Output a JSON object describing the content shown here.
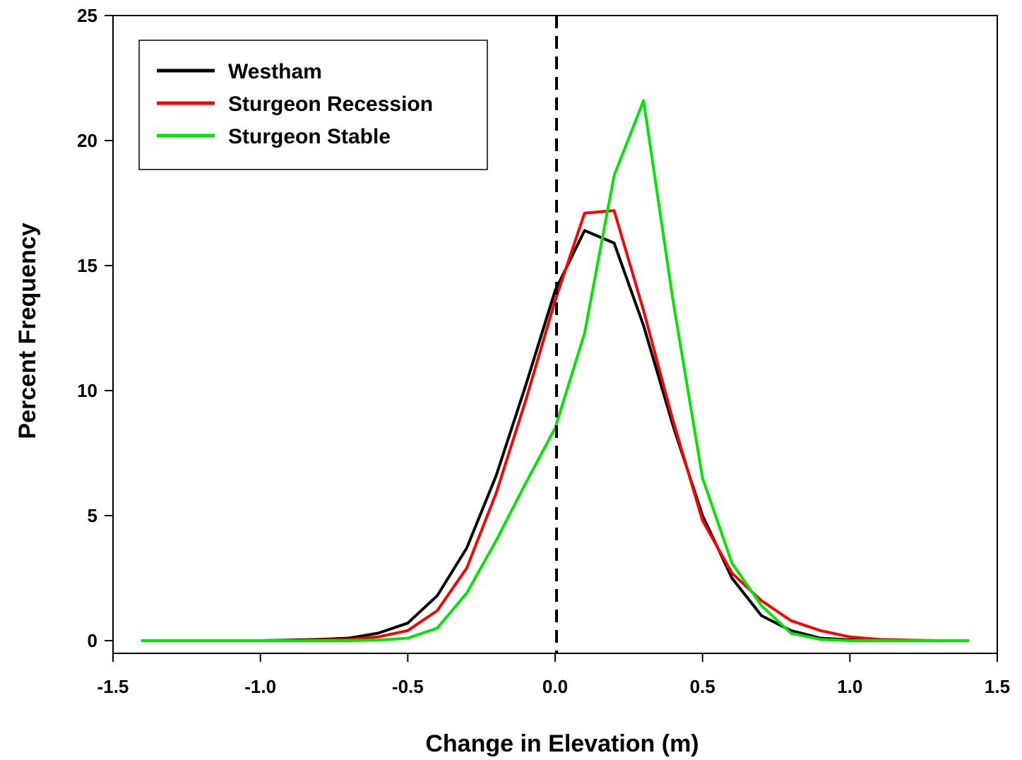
{
  "chart_data": {
    "type": "line",
    "title": "",
    "xlabel": "Change in Elevation (m)",
    "ylabel": "Percent Frequency",
    "xlim": [
      -1.5,
      1.5
    ],
    "ylim": [
      0,
      25
    ],
    "x_ticks": [
      -1.5,
      -1.0,
      -0.5,
      0.0,
      0.5,
      1.0,
      1.5
    ],
    "x_tick_labels": [
      "-1.5",
      "-1.0",
      "-0.5",
      "0.0",
      "0.5",
      "1.0",
      "1.5"
    ],
    "y_ticks": [
      0,
      5,
      10,
      15,
      20,
      25
    ],
    "y_tick_labels": [
      "0",
      "5",
      "10",
      "15",
      "20",
      "25"
    ],
    "grid": false,
    "legend_position": "top-left",
    "reference_line": {
      "x": 0.0,
      "style": "dashed",
      "color": "#000000"
    },
    "series": [
      {
        "name": "Westham",
        "color": "#000000",
        "x": [
          -1.4,
          -1.3,
          -1.2,
          -1.1,
          -1.0,
          -0.9,
          -0.8,
          -0.7,
          -0.6,
          -0.5,
          -0.4,
          -0.3,
          -0.2,
          -0.1,
          0.0,
          0.1,
          0.2,
          0.3,
          0.4,
          0.5,
          0.6,
          0.7,
          0.8,
          0.9,
          1.0,
          1.1,
          1.2,
          1.3,
          1.4
        ],
        "y": [
          0.0,
          0.0,
          0.0,
          0.0,
          0.0,
          0.02,
          0.05,
          0.1,
          0.3,
          0.7,
          1.8,
          3.7,
          6.6,
          10.2,
          14.0,
          16.4,
          15.9,
          12.6,
          8.6,
          5.0,
          2.5,
          1.0,
          0.4,
          0.1,
          0.03,
          0.0,
          0.0,
          0.0,
          0.0
        ]
      },
      {
        "name": "Sturgeon Recession",
        "color": "#ff0000",
        "x": [
          -1.4,
          -1.3,
          -1.2,
          -1.1,
          -1.0,
          -0.9,
          -0.8,
          -0.7,
          -0.6,
          -0.5,
          -0.4,
          -0.3,
          -0.2,
          -0.1,
          0.0,
          0.1,
          0.2,
          0.3,
          0.4,
          0.5,
          0.6,
          0.7,
          0.8,
          0.9,
          1.0,
          1.1,
          1.2,
          1.3,
          1.4
        ],
        "y": [
          0.0,
          0.0,
          0.0,
          0.0,
          0.0,
          0.0,
          0.02,
          0.05,
          0.15,
          0.4,
          1.2,
          2.9,
          5.9,
          9.6,
          13.6,
          17.1,
          17.2,
          13.2,
          8.8,
          4.8,
          2.7,
          1.6,
          0.8,
          0.4,
          0.15,
          0.05,
          0.02,
          0.0,
          0.0
        ]
      },
      {
        "name": "Sturgeon Stable",
        "color": "#00e600",
        "x": [
          -1.4,
          -1.3,
          -1.2,
          -1.1,
          -1.0,
          -0.9,
          -0.8,
          -0.7,
          -0.6,
          -0.5,
          -0.4,
          -0.3,
          -0.2,
          -0.1,
          0.0,
          0.1,
          0.2,
          0.3,
          0.4,
          0.5,
          0.6,
          0.7,
          0.8,
          0.9,
          1.0,
          1.1,
          1.2,
          1.3,
          1.4
        ],
        "y": [
          0.0,
          0.0,
          0.0,
          0.0,
          0.0,
          0.0,
          0.0,
          0.0,
          0.02,
          0.1,
          0.5,
          1.9,
          4.0,
          6.3,
          8.5,
          12.3,
          18.6,
          21.6,
          13.6,
          6.5,
          3.1,
          1.4,
          0.3,
          0.05,
          0.0,
          0.0,
          0.0,
          0.0,
          0.0
        ]
      }
    ]
  }
}
